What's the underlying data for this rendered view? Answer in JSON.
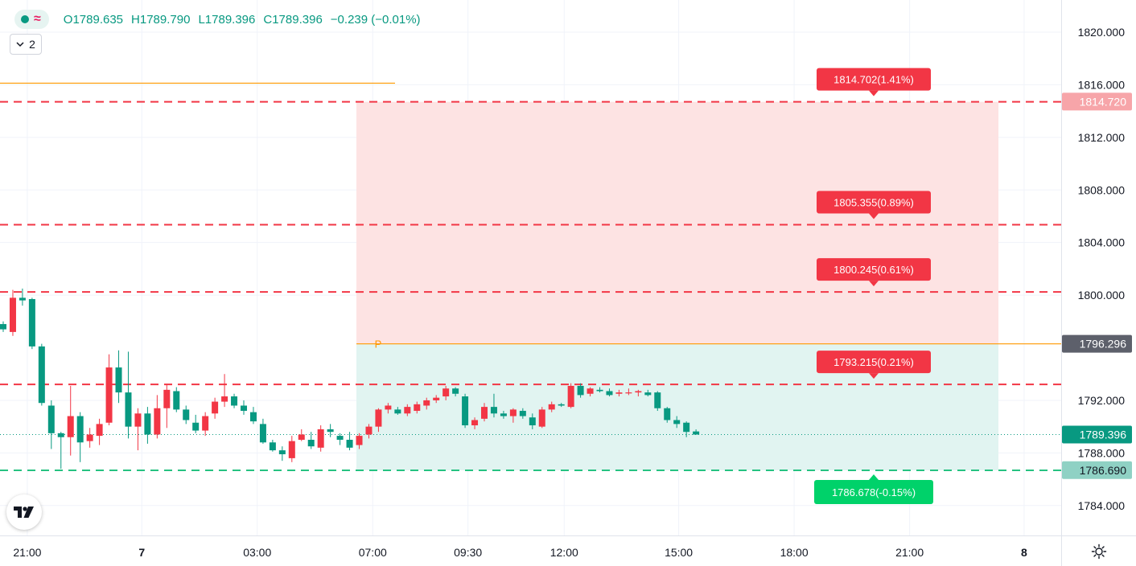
{
  "legend": {
    "open_label": "O",
    "open": "1789.635",
    "high_label": "H",
    "high": "1789.790",
    "low_label": "L",
    "low": "1789.396",
    "close_label": "C",
    "close": "1789.396",
    "change": "−0.239 (−0.01%)",
    "indicator_count": "2",
    "collapse_icon": "chevron-down-icon",
    "wave_icon": "wave-icon"
  },
  "colors": {
    "up": "#089981",
    "down": "#f23645",
    "pivot": "#ff9800",
    "target": "#f23645",
    "stop": "#22ab94",
    "red_zone": "#fde3e3",
    "green_zone": "#e1f4f1"
  },
  "chart_data": {
    "type": "candlestick",
    "y_axis": {
      "range": [
        1782.0,
        1822.0
      ],
      "ticks": [
        "1820.000",
        "1816.000",
        "1812.000",
        "1808.000",
        "1804.000",
        "1800.000",
        "1792.000",
        "1788.000",
        "1784.000"
      ]
    },
    "x_axis": {
      "ticks": [
        {
          "label": "21:00",
          "bar": 2.5,
          "bold": false
        },
        {
          "label": "7",
          "bar": 14.4,
          "bold": true
        },
        {
          "label": "03:00",
          "bar": 26.4,
          "bold": false
        },
        {
          "label": "07:00",
          "bar": 38.4,
          "bold": false
        },
        {
          "label": "09:30",
          "bar": 48.3,
          "bold": false
        },
        {
          "label": "12:00",
          "bar": 58.3,
          "bold": false
        },
        {
          "label": "15:00",
          "bar": 70.2,
          "bold": false
        },
        {
          "label": "18:00",
          "bar": 82.2,
          "bold": false
        },
        {
          "label": "21:00",
          "bar": 94.2,
          "bold": false
        },
        {
          "label": "8",
          "bar": 106.1,
          "bold": true
        }
      ]
    },
    "candles": [
      [
        1797.8,
        1798.0,
        1797.2,
        1797.4
      ],
      [
        1797.2,
        1800.4,
        1796.9,
        1799.8
      ],
      [
        1799.8,
        1800.5,
        1799.2,
        1799.6
      ],
      [
        1799.7,
        1799.8,
        1795.9,
        1796.1
      ],
      [
        1796.1,
        1796.3,
        1791.6,
        1791.8
      ],
      [
        1791.6,
        1792.0,
        1788.3,
        1789.5
      ],
      [
        1789.5,
        1789.6,
        1786.8,
        1789.2
      ],
      [
        1789.2,
        1793.1,
        1787.8,
        1790.8
      ],
      [
        1790.8,
        1791.1,
        1787.3,
        1788.8
      ],
      [
        1788.9,
        1789.9,
        1788.4,
        1789.4
      ],
      [
        1789.3,
        1790.6,
        1788.6,
        1790.2
      ],
      [
        1790.3,
        1795.5,
        1790.1,
        1794.5
      ],
      [
        1794.5,
        1795.8,
        1791.8,
        1792.6
      ],
      [
        1792.6,
        1795.7,
        1789.1,
        1790.0
      ],
      [
        1790.0,
        1791.4,
        1788.2,
        1791.0
      ],
      [
        1791.0,
        1791.5,
        1788.7,
        1789.4
      ],
      [
        1789.4,
        1792.4,
        1789.1,
        1791.4
      ],
      [
        1791.4,
        1793.2,
        1789.9,
        1792.8
      ],
      [
        1792.7,
        1793.0,
        1791.1,
        1791.3
      ],
      [
        1791.3,
        1791.6,
        1790.2,
        1790.5
      ],
      [
        1790.3,
        1790.9,
        1789.5,
        1789.7
      ],
      [
        1789.7,
        1791.1,
        1789.3,
        1790.8
      ],
      [
        1791.0,
        1792.2,
        1790.6,
        1791.9
      ],
      [
        1791.9,
        1794.0,
        1791.5,
        1792.3
      ],
      [
        1792.3,
        1792.5,
        1791.4,
        1791.6
      ],
      [
        1791.6,
        1792.0,
        1790.9,
        1791.2
      ],
      [
        1791.1,
        1791.5,
        1790.2,
        1790.4
      ],
      [
        1790.2,
        1790.6,
        1788.7,
        1788.8
      ],
      [
        1788.8,
        1789.0,
        1788.1,
        1788.2
      ],
      [
        1788.2,
        1788.5,
        1787.4,
        1787.9
      ],
      [
        1787.6,
        1789.3,
        1787.3,
        1788.9
      ],
      [
        1789.0,
        1789.8,
        1788.9,
        1789.4
      ],
      [
        1789.0,
        1789.6,
        1788.3,
        1788.5
      ],
      [
        1788.4,
        1790.1,
        1788.1,
        1789.8
      ],
      [
        1789.8,
        1790.2,
        1789.2,
        1789.6
      ],
      [
        1789.3,
        1789.5,
        1788.6,
        1789.0
      ],
      [
        1789.0,
        1789.6,
        1788.2,
        1788.4
      ],
      [
        1788.6,
        1789.5,
        1788.3,
        1789.3
      ],
      [
        1789.4,
        1790.2,
        1789.1,
        1790.0
      ],
      [
        1790.0,
        1791.4,
        1789.6,
        1791.3
      ],
      [
        1791.3,
        1791.8,
        1791.0,
        1791.6
      ],
      [
        1791.3,
        1791.5,
        1790.9,
        1791.0
      ],
      [
        1791.0,
        1791.7,
        1790.8,
        1791.5
      ],
      [
        1791.2,
        1791.9,
        1791.0,
        1791.7
      ],
      [
        1791.6,
        1792.2,
        1791.3,
        1792.0
      ],
      [
        1792.0,
        1792.4,
        1791.8,
        1792.2
      ],
      [
        1792.3,
        1793.1,
        1792.0,
        1792.9
      ],
      [
        1792.9,
        1793.0,
        1792.3,
        1792.5
      ],
      [
        1792.3,
        1792.5,
        1789.9,
        1790.1
      ],
      [
        1790.1,
        1790.7,
        1789.8,
        1790.5
      ],
      [
        1790.6,
        1791.8,
        1790.4,
        1791.5
      ],
      [
        1791.5,
        1792.5,
        1790.7,
        1791.0
      ],
      [
        1791.0,
        1791.2,
        1790.6,
        1790.8
      ],
      [
        1790.8,
        1791.4,
        1790.3,
        1791.3
      ],
      [
        1791.2,
        1791.4,
        1790.6,
        1790.8
      ],
      [
        1790.7,
        1791.0,
        1789.8,
        1790.1
      ],
      [
        1790.0,
        1791.5,
        1789.9,
        1791.3
      ],
      [
        1791.3,
        1791.9,
        1791.1,
        1791.7
      ],
      [
        1791.7,
        1791.8,
        1791.5,
        1791.6
      ],
      [
        1791.5,
        1793.3,
        1791.4,
        1793.1
      ],
      [
        1793.1,
        1793.3,
        1792.2,
        1792.4
      ],
      [
        1792.5,
        1793.0,
        1792.3,
        1792.9
      ],
      [
        1792.8,
        1793.0,
        1792.6,
        1792.7
      ],
      [
        1792.7,
        1792.9,
        1792.3,
        1792.4
      ],
      [
        1792.5,
        1792.8,
        1792.3,
        1792.6
      ],
      [
        1792.6,
        1792.9,
        1792.4,
        1792.6
      ],
      [
        1792.6,
        1792.8,
        1792.3,
        1792.7
      ],
      [
        1792.6,
        1792.8,
        1792.3,
        1792.4
      ],
      [
        1792.6,
        1792.7,
        1791.2,
        1791.4
      ],
      [
        1791.4,
        1791.5,
        1790.3,
        1790.5
      ],
      [
        1790.5,
        1790.8,
        1789.9,
        1790.2
      ],
      [
        1790.3,
        1790.4,
        1789.2,
        1789.6
      ],
      [
        1789.635,
        1789.79,
        1789.396,
        1789.396
      ]
    ],
    "pivot": {
      "label": "P",
      "value": 1796.296
    },
    "target_levels": [
      {
        "value": 1814.702,
        "label": "1814.702(1.41%)",
        "axis_label": "1814.720",
        "axis_value": 1814.72
      },
      {
        "value": 1805.355,
        "label": "1805.355(0.89%)"
      },
      {
        "value": 1800.245,
        "label": "1800.245(0.61%)"
      },
      {
        "value": 1793.215,
        "label": "1793.215(0.21%)"
      }
    ],
    "stop_level": {
      "value": 1786.678,
      "label": "1786.678(-0.15%)",
      "axis_label": "1786.690",
      "axis_value": 1786.69
    },
    "upper_level": {
      "value": 1816.12
    },
    "current_price": {
      "value": 1789.396,
      "label": "1789.396"
    },
    "pivot_price_label": "1796.296"
  }
}
